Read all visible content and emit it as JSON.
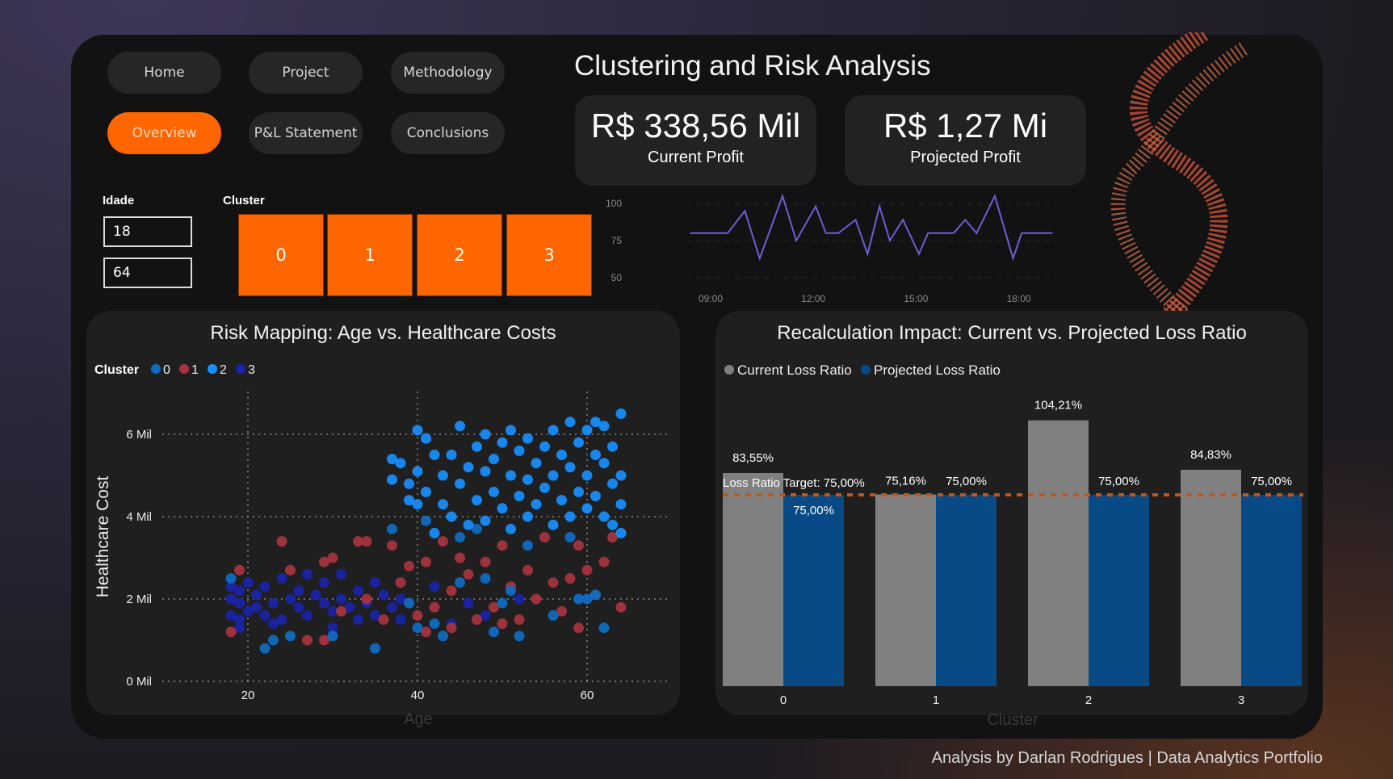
{
  "nav": {
    "items": [
      {
        "label": "Home",
        "active": false
      },
      {
        "label": "Project",
        "active": false
      },
      {
        "label": "Methodology",
        "active": false
      },
      {
        "label": "Overview",
        "active": true
      },
      {
        "label": "P&L Statement",
        "active": false
      },
      {
        "label": "Conclusions",
        "active": false
      }
    ]
  },
  "header": {
    "title": "Clustering and Risk Analysis"
  },
  "kpis": [
    {
      "value": "R$ 338,56 Mil",
      "label": "Current Profit"
    },
    {
      "value": "R$ 1,27 Mi",
      "label": "Projected Profit"
    }
  ],
  "filters": {
    "age_label": "Idade",
    "age_min": "18",
    "age_max": "64",
    "cluster_label": "Cluster",
    "clusters": [
      "0",
      "1",
      "2",
      "3"
    ]
  },
  "footer": "Analysis by Darlan Rodrigues | Data Analytics Portfolio",
  "colors": {
    "accent": "#ff6600",
    "cluster0": "#0f6cc4",
    "cluster1": "#a8343f",
    "cluster2": "#1890ff",
    "cluster3": "#1a24a8",
    "current": "#808080",
    "projected": "#084a85",
    "target": "#c0561a",
    "line": "#6b5fd6"
  },
  "chart_data": [
    {
      "type": "line",
      "y_ticks": [
        "100",
        "75",
        "50"
      ],
      "x_ticks": [
        "09:00",
        "12:00",
        "15:00",
        "18:00"
      ],
      "ylim": [
        50,
        100
      ],
      "grid": true,
      "x": [
        "08:24",
        "09:30",
        "10:00",
        "10:26",
        "11:06",
        "11:30",
        "12:04",
        "12:22",
        "12:44",
        "13:14",
        "13:35",
        "13:56",
        "14:14",
        "14:37",
        "15:05",
        "15:21",
        "16:06",
        "16:26",
        "16:46",
        "17:18",
        "17:50",
        "18:05",
        "18:59"
      ],
      "values": [
        80,
        80,
        95,
        63,
        105,
        75,
        98,
        80,
        80,
        89,
        66,
        98,
        75,
        89,
        66,
        80,
        80,
        89,
        80,
        105,
        63,
        80,
        80
      ]
    },
    {
      "type": "scatter",
      "title": "Risk Mapping: Age vs. Healthcare Costs",
      "xlabel": "Age",
      "ylabel": "Healthcare Cost",
      "legend_title": "Cluster",
      "legend_position": "top-left",
      "x_ticks": [
        "20",
        "40",
        "60"
      ],
      "y_ticks": [
        "0 Mil",
        "2 Mil",
        "4 Mil",
        "6 Mil"
      ],
      "xlim": [
        18,
        66
      ],
      "ylim": [
        0,
        6.8
      ],
      "grid": true,
      "series": [
        {
          "name": "0",
          "points": [
            [
              18,
              2.5
            ],
            [
              22,
              0.8
            ],
            [
              23,
              1.0
            ],
            [
              25,
              1.1
            ],
            [
              30,
              1.1
            ],
            [
              35,
              0.8
            ],
            [
              37,
              3.7
            ],
            [
              39,
              1.9
            ],
            [
              40,
              1.3
            ],
            [
              42,
              1.4
            ],
            [
              43,
              1.1
            ],
            [
              45,
              2.4
            ],
            [
              47,
              3.7
            ],
            [
              48,
              2.5
            ],
            [
              49,
              1.2
            ],
            [
              50,
              1.9
            ],
            [
              51,
              2.2
            ],
            [
              52,
              1.1
            ],
            [
              53,
              3.3
            ],
            [
              56,
              1.6
            ],
            [
              58,
              3.5
            ],
            [
              59,
              2.0
            ],
            [
              60,
              2.0
            ],
            [
              61,
              2.1
            ],
            [
              62,
              1.3
            ],
            [
              45,
              3.5
            ],
            [
              41,
              3.9
            ]
          ]
        },
        {
          "name": "1",
          "points": [
            [
              18,
              1.2
            ],
            [
              19,
              2.7
            ],
            [
              24,
              3.4
            ],
            [
              25,
              2.7
            ],
            [
              27,
              1.0
            ],
            [
              29,
              1.0
            ],
            [
              29,
              2.9
            ],
            [
              30,
              3.0
            ],
            [
              33,
              3.4
            ],
            [
              34,
              3.4
            ],
            [
              37,
              3.3
            ],
            [
              38,
              2.4
            ],
            [
              39,
              2.8
            ],
            [
              40,
              1.6
            ],
            [
              41,
              1.2
            ],
            [
              41,
              2.9
            ],
            [
              42,
              1.8
            ],
            [
              43,
              3.4
            ],
            [
              44,
              2.2
            ],
            [
              45,
              3.0
            ],
            [
              46,
              2.6
            ],
            [
              47,
              1.5
            ],
            [
              48,
              2.9
            ],
            [
              49,
              1.8
            ],
            [
              50,
              3.3
            ],
            [
              51,
              2.3
            ],
            [
              52,
              1.5
            ],
            [
              53,
              2.7
            ],
            [
              54,
              2.0
            ],
            [
              55,
              3.5
            ],
            [
              56,
              2.4
            ],
            [
              57,
              1.7
            ],
            [
              58,
              2.5
            ],
            [
              59,
              3.3
            ],
            [
              59,
              1.3
            ],
            [
              60,
              2.7
            ],
            [
              61,
              2.1
            ],
            [
              62,
              2.9
            ],
            [
              63,
              3.5
            ],
            [
              64,
              1.8
            ],
            [
              36,
              1.5
            ],
            [
              34,
              2.0
            ],
            [
              31,
              1.7
            ],
            [
              44,
              1.3
            ],
            [
              50,
              1.4
            ]
          ]
        },
        {
          "name": "2",
          "points": [
            [
              37,
              5.4
            ],
            [
              37,
              4.9
            ],
            [
              38,
              5.3
            ],
            [
              39,
              4.8
            ],
            [
              39,
              4.4
            ],
            [
              40,
              6.1
            ],
            [
              40,
              5.1
            ],
            [
              40,
              4.3
            ],
            [
              41,
              5.9
            ],
            [
              41,
              4.6
            ],
            [
              42,
              5.5
            ],
            [
              42,
              3.6
            ],
            [
              43,
              5.0
            ],
            [
              43,
              4.3
            ],
            [
              44,
              5.5
            ],
            [
              44,
              4.0
            ],
            [
              45,
              6.2
            ],
            [
              45,
              4.8
            ],
            [
              46,
              5.2
            ],
            [
              46,
              3.8
            ],
            [
              47,
              5.7
            ],
            [
              47,
              4.4
            ],
            [
              48,
              6.0
            ],
            [
              48,
              5.1
            ],
            [
              48,
              3.9
            ],
            [
              49,
              5.4
            ],
            [
              49,
              4.6
            ],
            [
              50,
              5.8
            ],
            [
              50,
              4.2
            ],
            [
              51,
              6.1
            ],
            [
              51,
              5.0
            ],
            [
              51,
              3.7
            ],
            [
              52,
              5.6
            ],
            [
              52,
              4.5
            ],
            [
              53,
              5.9
            ],
            [
              53,
              4.9
            ],
            [
              53,
              4.0
            ],
            [
              54,
              5.3
            ],
            [
              54,
              4.3
            ],
            [
              55,
              5.7
            ],
            [
              55,
              4.7
            ],
            [
              56,
              6.1
            ],
            [
              56,
              5.0
            ],
            [
              56,
              3.8
            ],
            [
              57,
              5.5
            ],
            [
              57,
              4.4
            ],
            [
              58,
              6.3
            ],
            [
              58,
              5.2
            ],
            [
              58,
              4.0
            ],
            [
              59,
              5.8
            ],
            [
              59,
              4.6
            ],
            [
              60,
              6.1
            ],
            [
              60,
              5.0
            ],
            [
              60,
              4.2
            ],
            [
              61,
              6.3
            ],
            [
              61,
              5.5
            ],
            [
              61,
              4.5
            ],
            [
              62,
              6.2
            ],
            [
              62,
              5.3
            ],
            [
              62,
              4.0
            ],
            [
              63,
              5.7
            ],
            [
              63,
              4.8
            ],
            [
              63,
              3.8
            ],
            [
              64,
              6.5
            ],
            [
              64,
              5.0
            ],
            [
              64,
              4.3
            ],
            [
              64,
              3.6
            ]
          ]
        },
        {
          "name": "3",
          "points": [
            [
              18,
              1.6
            ],
            [
              18,
              2.0
            ],
            [
              18,
              2.3
            ],
            [
              19,
              1.5
            ],
            [
              19,
              1.9
            ],
            [
              19,
              2.2
            ],
            [
              20,
              1.7
            ],
            [
              20,
              2.4
            ],
            [
              21,
              1.8
            ],
            [
              21,
              2.1
            ],
            [
              22,
              1.6
            ],
            [
              22,
              2.3
            ],
            [
              23,
              1.9
            ],
            [
              24,
              2.5
            ],
            [
              24,
              1.5
            ],
            [
              25,
              2.0
            ],
            [
              26,
              1.8
            ],
            [
              26,
              2.2
            ],
            [
              27,
              1.6
            ],
            [
              28,
              2.1
            ],
            [
              29,
              1.9
            ],
            [
              29,
              2.4
            ],
            [
              30,
              1.7
            ],
            [
              31,
              2.0
            ],
            [
              31,
              2.6
            ],
            [
              32,
              1.8
            ],
            [
              33,
              2.2
            ],
            [
              34,
              1.9
            ],
            [
              35,
              1.6
            ],
            [
              35,
              2.4
            ],
            [
              36,
              2.1
            ],
            [
              37,
              1.8
            ],
            [
              38,
              2.0
            ],
            [
              38,
              1.5
            ],
            [
              42,
              2.3
            ],
            [
              44,
              1.4
            ],
            [
              46,
              1.9
            ],
            [
              48,
              1.6
            ],
            [
              52,
              2.0
            ],
            [
              19,
              1.3
            ],
            [
              23,
              1.4
            ],
            [
              27,
              2.6
            ],
            [
              30,
              1.3
            ],
            [
              33,
              1.5
            ]
          ]
        }
      ]
    },
    {
      "type": "bar",
      "title": "Recalculation Impact: Current vs. Projected Loss Ratio",
      "xlabel": "Cluster",
      "legend_position": "top-left",
      "categories": [
        "0",
        "1",
        "2",
        "3"
      ],
      "ylim": [
        0,
        110
      ],
      "series": [
        {
          "name": "Current Loss Ratio",
          "values": [
            83.55,
            75.16,
            104.21,
            84.83
          ],
          "labels": [
            "83,55%",
            "75,16%",
            "104,21%",
            "84,83%"
          ]
        },
        {
          "name": "Projected Loss Ratio",
          "values": [
            75,
            75,
            75,
            75
          ],
          "labels": [
            "75,00%",
            "75,00%",
            "75,00%",
            "75,00%"
          ]
        }
      ],
      "target": {
        "value": 75,
        "label": "Loss Ratio Target: 75,00%"
      }
    }
  ]
}
